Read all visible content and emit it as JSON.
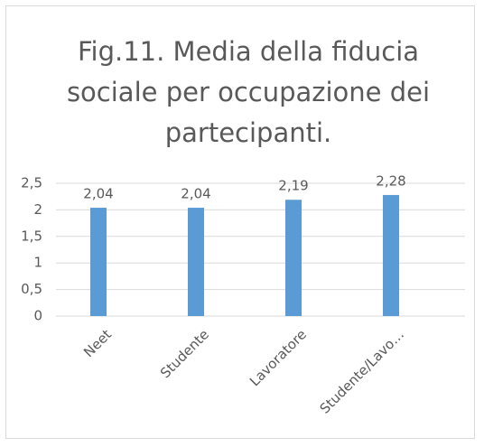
{
  "chart_data": {
    "type": "bar",
    "title": "Fig.11. Media della fiducia sociale per occupazione dei partecipanti.",
    "categories": [
      "Neet",
      "Studente",
      "Lavoratore",
      "Studente/Lavo…"
    ],
    "values": [
      2.04,
      2.04,
      2.19,
      2.28
    ],
    "value_labels": [
      "2,04",
      "2,04",
      "2,19",
      "2,28"
    ],
    "color": "#5b9bd5",
    "ylim": [
      0,
      2.5
    ],
    "yticks": [
      0,
      {
        "value": 0.5,
        "label": "0,5"
      },
      1,
      {
        "value": 1.5,
        "label": "1,5"
      },
      2,
      {
        "value": 2.5,
        "label": "2,5"
      }
    ],
    "grid": true
  }
}
